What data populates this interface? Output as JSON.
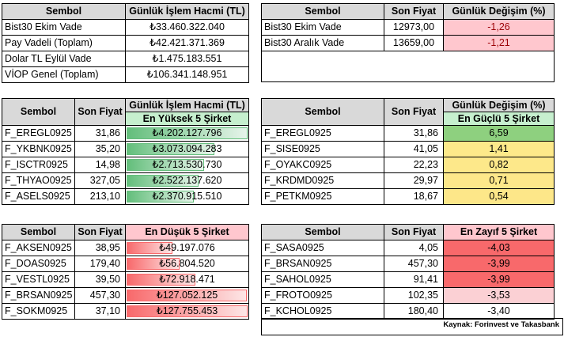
{
  "top_left": {
    "headers": [
      "Sembol",
      "Günlük İşlem Hacmi (TL)"
    ],
    "rows": [
      {
        "symbol": "Bist30 Ekim Vade",
        "value": "₺33.460.322.040"
      },
      {
        "symbol": "Pay Vadeli (Toplam)",
        "value": "₺42.421.371.369"
      },
      {
        "symbol": "Dolar TL Eylül Vade",
        "value": "₺1.475.183.551"
      },
      {
        "symbol": "VİOP Genel (Toplam)",
        "value": "₺106.341.148.951"
      }
    ]
  },
  "top_right": {
    "headers": [
      "Sembol",
      "Son Fiyat",
      "Günlük Değişim (%)"
    ],
    "rows": [
      {
        "symbol": "Bist30 Ekim Vade",
        "price": "12973,00",
        "change": "-1,26"
      },
      {
        "symbol": "Bist30 Aralık Vade",
        "price": "13659,00",
        "change": "-1,21"
      }
    ]
  },
  "volume_top": {
    "headers": [
      "Sembol",
      "Son Fiyat",
      "Günlük İşlem Hacmi (TL)"
    ],
    "subheader": "En Yüksek 5 Şirket",
    "rows": [
      {
        "symbol": "F_EREGL0925",
        "price": "31,86",
        "volume": "₺4.202.127.796",
        "fill": 1.0
      },
      {
        "symbol": "F_YKBNK0925",
        "price": "35,20",
        "volume": "₺3.073.094.283",
        "fill": 0.73
      },
      {
        "symbol": "F_ISCTR0925",
        "price": "14,98",
        "volume": "₺2.713.530.730",
        "fill": 0.645
      },
      {
        "symbol": "F_THYAO0925",
        "price": "327,05",
        "volume": "₺2.522.137.620",
        "fill": 0.6
      },
      {
        "symbol": "F_ASELS0925",
        "price": "213,10",
        "volume": "₺2.370.915.510",
        "fill": 0.564
      }
    ]
  },
  "change_top": {
    "headers": [
      "Sembol",
      "Son Fiyat",
      "Günlük Değişim (%)"
    ],
    "subheader": "En Güçlü 5 Şirket",
    "rows": [
      {
        "symbol": "F_EREGL0925",
        "price": "31,86",
        "change": "6,59",
        "color": "#8ed07f"
      },
      {
        "symbol": "F_SISE0925",
        "price": "41,05",
        "change": "1,41",
        "color": "#fde98a"
      },
      {
        "symbol": "F_OYAKC0925",
        "price": "22,23",
        "change": "0,82",
        "color": "#fde88a"
      },
      {
        "symbol": "F_KRDMD0925",
        "price": "29,97",
        "change": "0,71",
        "color": "#fde88a"
      },
      {
        "symbol": "F_PETKM0925",
        "price": "18,67",
        "change": "0,54",
        "color": "#fde789"
      }
    ]
  },
  "volume_bottom": {
    "headers": [
      "Sembol",
      "Son Fiyat",
      "En Düşük 5 Şirket"
    ],
    "rows": [
      {
        "symbol": "F_AKSEN0925",
        "price": "38,95",
        "volume": "₺49.197.076",
        "fill": 0.385
      },
      {
        "symbol": "F_DOAS0925",
        "price": "179,40",
        "volume": "₺56.804.520",
        "fill": 0.445
      },
      {
        "symbol": "F_VESTL0925",
        "price": "39,50",
        "volume": "₺72.918.471",
        "fill": 0.571
      },
      {
        "symbol": "F_BRSAN0925",
        "price": "457,30",
        "volume": "₺127.052.125",
        "fill": 0.995
      },
      {
        "symbol": "F_SOKM0925",
        "price": "37,10",
        "volume": "₺127.755.453",
        "fill": 1.0
      }
    ]
  },
  "change_bottom": {
    "headers": [
      "Sembol",
      "Son Fiyat",
      "En Zayıf 5 Şirket"
    ],
    "rows": [
      {
        "symbol": "F_SASA0925",
        "price": "4,05",
        "change": "-4,03",
        "color": "#f8696b"
      },
      {
        "symbol": "F_BRSAN0925",
        "price": "457,30",
        "change": "-3,99",
        "color": "#f8696b"
      },
      {
        "symbol": "F_SAHOL0925",
        "price": "91,41",
        "change": "-3,99",
        "color": "#f8696b"
      },
      {
        "symbol": "F_FROTO0925",
        "price": "102,35",
        "change": "-3,53",
        "color": "#fbd0d4"
      },
      {
        "symbol": "F_KCHOL0925",
        "price": "180,40",
        "change": "-3,40",
        "color": "#ffffff"
      }
    ]
  },
  "source": "Kaynak: Forinvest ve Takasbank"
}
